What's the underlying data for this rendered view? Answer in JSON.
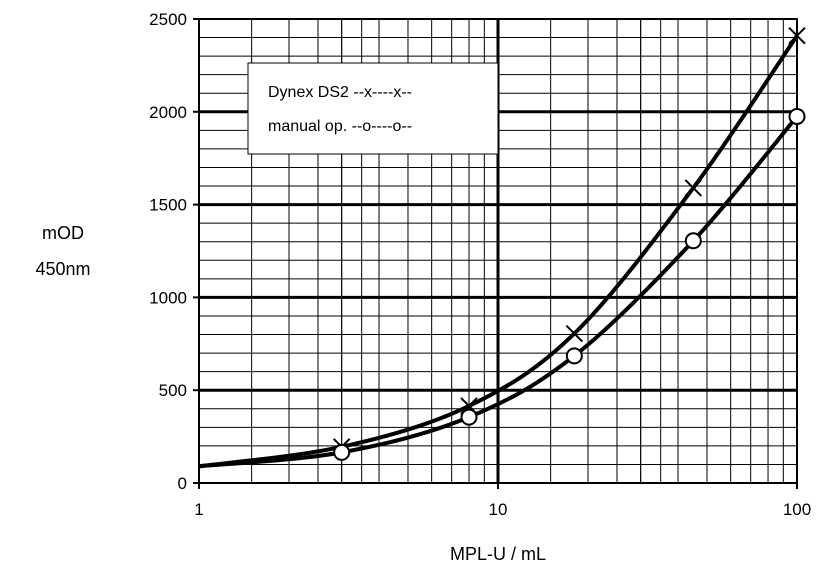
{
  "chart_data": {
    "type": "line",
    "title": "",
    "xlabel": "MPL-U / mL",
    "ylabel_lines": [
      "mOD",
      "450nm"
    ],
    "x_scale": "log",
    "xlim": [
      1,
      100
    ],
    "ylim": [
      0,
      2500
    ],
    "x_ticks": [
      1,
      10,
      100
    ],
    "x_tick_labels": [
      "1",
      "10",
      "100"
    ],
    "y_ticks": [
      0,
      500,
      1000,
      1500,
      2000,
      2500
    ],
    "y_tick_labels": [
      "0",
      "500",
      "1000",
      "1500",
      "2000",
      "2500"
    ],
    "grid": true,
    "legend": {
      "position": "top-left",
      "entries": [
        "Dynex DS2 --x----x--",
        "manual op. --o----o--"
      ]
    },
    "series": [
      {
        "name": "Dynex DS2",
        "marker": "x",
        "x": [
          3,
          8,
          18,
          45,
          100
        ],
        "y": [
          195,
          415,
          805,
          1590,
          2410
        ],
        "curve_start": [
          1,
          90
        ]
      },
      {
        "name": "manual op.",
        "marker": "o",
        "x": [
          3,
          8,
          18,
          45,
          100
        ],
        "y": [
          165,
          355,
          685,
          1305,
          1975
        ],
        "curve_start": [
          1,
          90
        ]
      }
    ]
  },
  "colors": {
    "line": "#000000",
    "grid": "#000000",
    "background": "#ffffff"
  }
}
